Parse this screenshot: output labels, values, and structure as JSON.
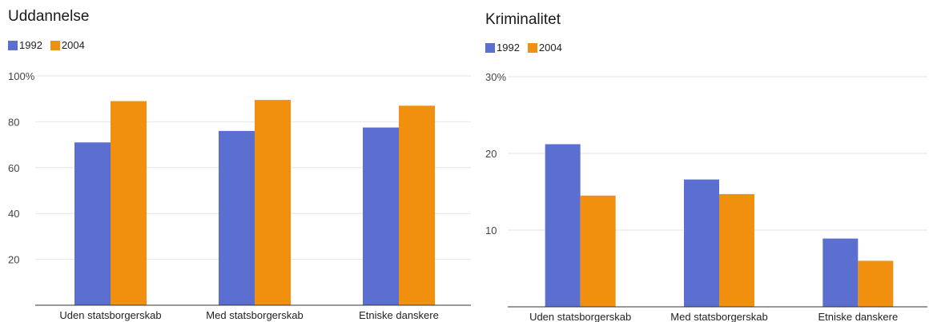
{
  "colors": {
    "s1992": "#5a6fd0",
    "s2004": "#f0900e",
    "grid": "#e6e6e6",
    "axis": "#333333"
  },
  "chart_data": [
    {
      "type": "bar",
      "title": "Uddannelse",
      "categories": [
        "Uden statsborgerskab",
        "Med statsborgerskab",
        "Etniske danskere"
      ],
      "series": [
        {
          "name": "1992",
          "values": [
            71,
            76,
            77.5
          ]
        },
        {
          "name": "2004",
          "values": [
            89,
            89.5,
            87
          ]
        }
      ],
      "yticks": [
        "20",
        "40",
        "60",
        "80",
        "100%"
      ],
      "ytick_values": [
        20,
        40,
        60,
        80,
        100
      ],
      "ylim": [
        0,
        100
      ],
      "grid": true,
      "legend": "top-left"
    },
    {
      "type": "bar",
      "title": "Kriminalitet",
      "categories": [
        "Uden statsborgerskab",
        "Med statsborgerskab",
        "Etniske danskere"
      ],
      "series": [
        {
          "name": "1992",
          "values": [
            21.2,
            16.6,
            8.9
          ]
        },
        {
          "name": "2004",
          "values": [
            14.5,
            14.7,
            6.0
          ]
        }
      ],
      "yticks": [
        "10",
        "20",
        "30%"
      ],
      "ytick_values": [
        10,
        20,
        30
      ],
      "ylim": [
        0,
        30
      ],
      "grid": true,
      "legend": "top-left"
    }
  ]
}
